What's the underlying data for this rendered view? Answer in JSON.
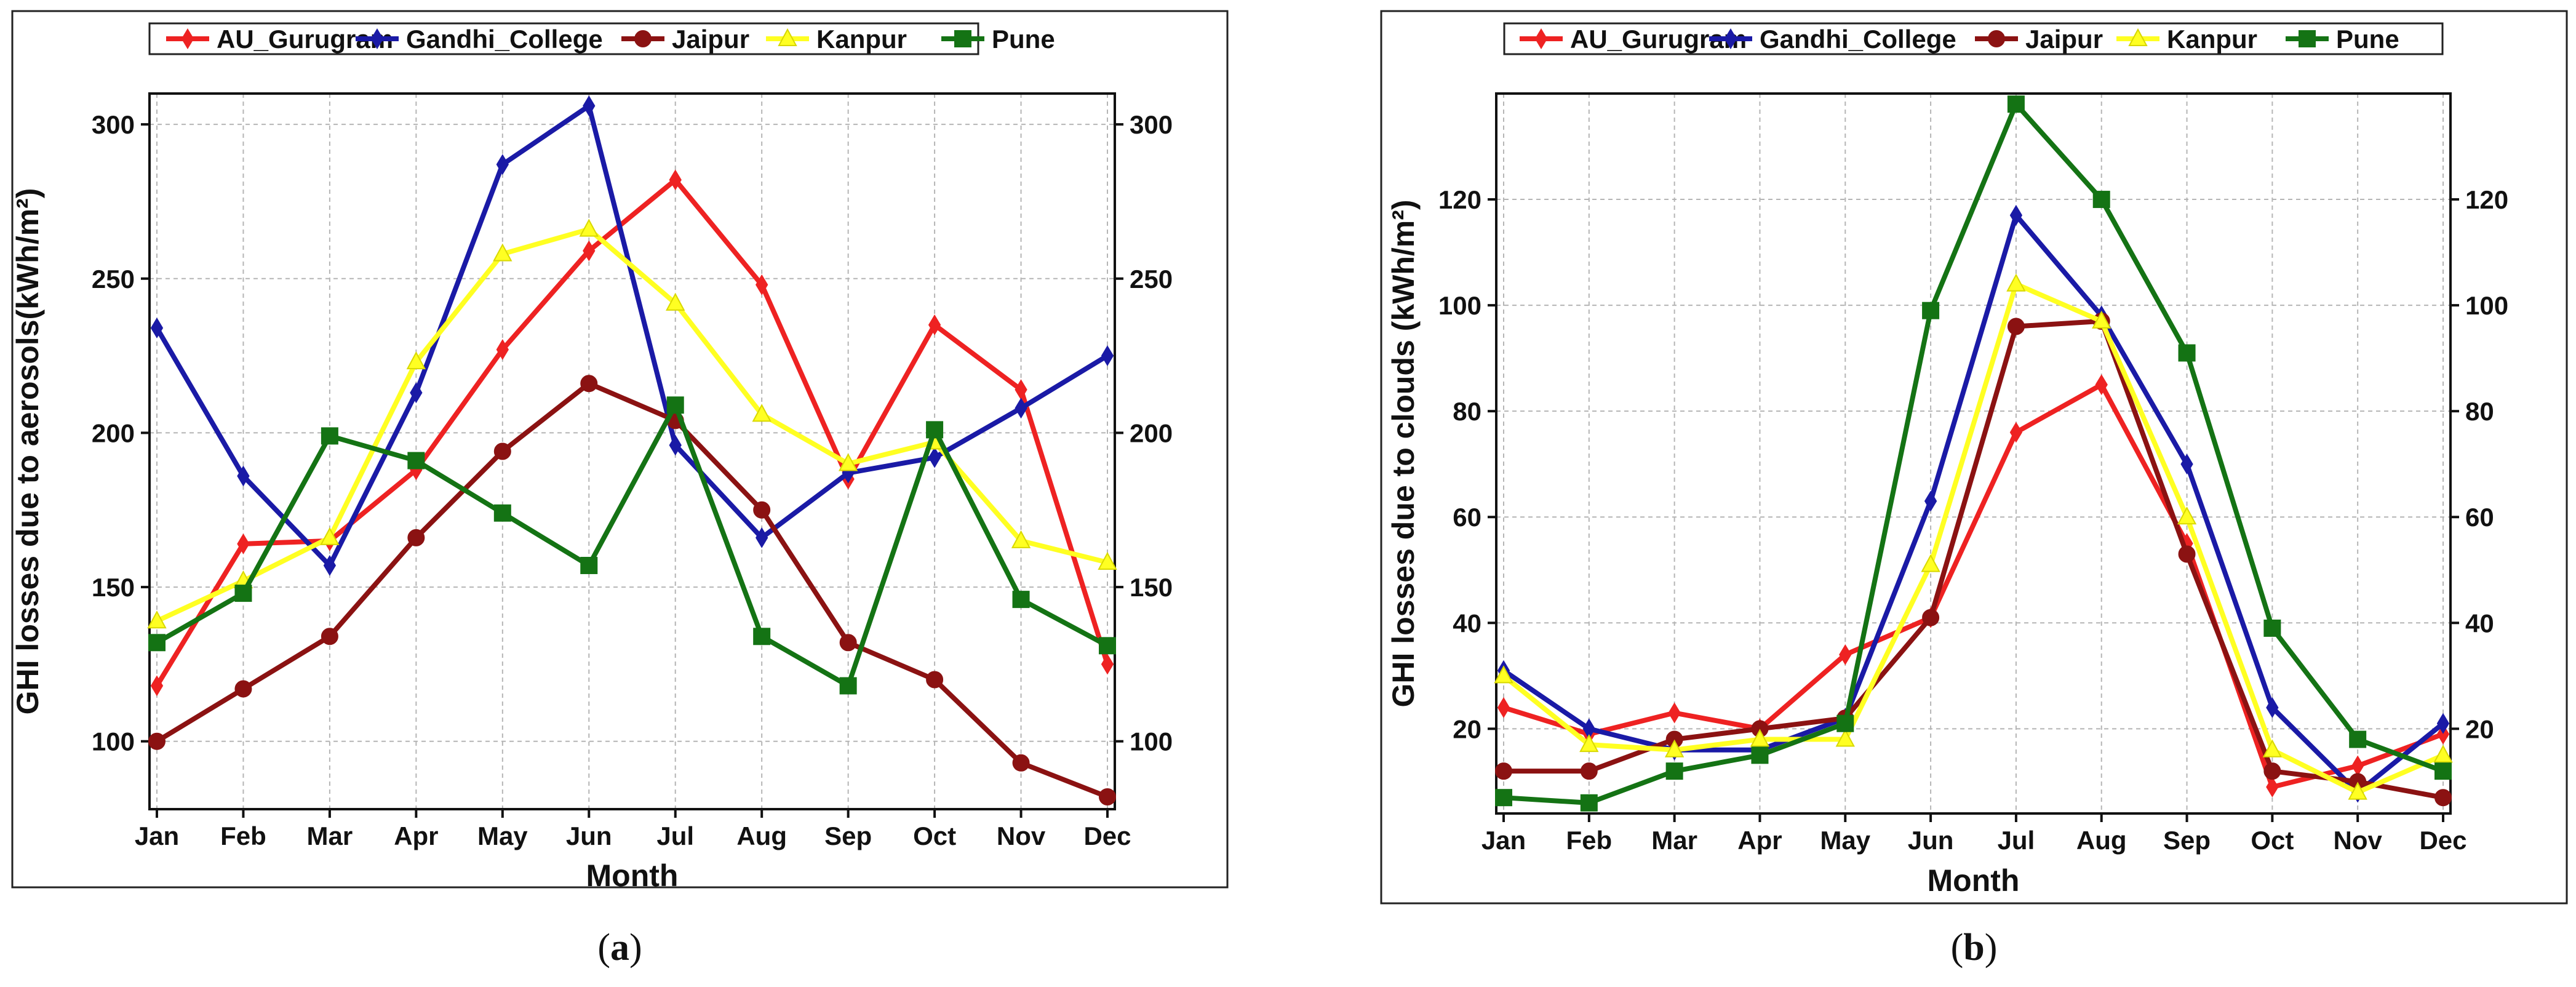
{
  "colors": {
    "AU_Gurugram": "#ee2222",
    "Gandhi_College": "#1a1aa6",
    "Jaipur": "#8b1212",
    "Kanpur": "#ffff22",
    "Pune": "#147314"
  },
  "chart_data": [
    {
      "type": "line",
      "panel_label": "a",
      "title": "",
      "xlabel": "Month",
      "ylabel": "GHI losses due to aerosols(kWh/m²)",
      "categories": [
        "Jan",
        "Feb",
        "Mar",
        "Apr",
        "May",
        "Jun",
        "Jul",
        "Aug",
        "Sep",
        "Oct",
        "Nov",
        "Dec"
      ],
      "ylim": [
        78,
        310
      ],
      "yticks": [
        100,
        150,
        200,
        250,
        300
      ],
      "grid": true,
      "legend": "top",
      "series": [
        {
          "name": "AU_Gurugram",
          "marker": "diamond",
          "values": [
            118,
            164,
            165,
            188,
            227,
            259,
            282,
            248,
            185,
            235,
            214,
            125
          ]
        },
        {
          "name": "Gandhi_College",
          "marker": "diamond",
          "values": [
            234,
            186,
            157,
            213,
            287,
            306,
            196,
            166,
            187,
            192,
            208,
            225
          ]
        },
        {
          "name": "Jaipur",
          "marker": "circle",
          "values": [
            100,
            117,
            134,
            166,
            194,
            216,
            204,
            175,
            132,
            120,
            93,
            82
          ]
        },
        {
          "name": "Kanpur",
          "marker": "triangle",
          "values": [
            139,
            152,
            166,
            223,
            258,
            266,
            242,
            206,
            190,
            197,
            165,
            158
          ]
        },
        {
          "name": "Pune",
          "marker": "square",
          "values": [
            132,
            148,
            199,
            191,
            174,
            157,
            209,
            134,
            118,
            201,
            146,
            131
          ]
        }
      ]
    },
    {
      "type": "line",
      "panel_label": "b",
      "title": "",
      "xlabel": "Month",
      "ylabel": "GHI losses due to clouds (kWh/m²)",
      "categories": [
        "Jan",
        "Feb",
        "Mar",
        "Apr",
        "May",
        "Jun",
        "Jul",
        "Aug",
        "Sep",
        "Oct",
        "Nov",
        "Dec"
      ],
      "ylim": [
        4,
        140
      ],
      "yticks": [
        20,
        40,
        60,
        80,
        100,
        120
      ],
      "grid": true,
      "legend": "top",
      "series": [
        {
          "name": "AU_Gurugram",
          "marker": "diamond",
          "values": [
            24,
            19,
            23,
            20,
            34,
            41,
            76,
            85,
            55,
            9,
            13,
            19
          ]
        },
        {
          "name": "Gandhi_College",
          "marker": "diamond",
          "values": [
            31,
            20,
            16,
            16,
            22,
            63,
            117,
            98,
            70,
            24,
            8,
            21
          ]
        },
        {
          "name": "Jaipur",
          "marker": "circle",
          "values": [
            12,
            12,
            18,
            20,
            22,
            41,
            96,
            97,
            53,
            12,
            10,
            7
          ]
        },
        {
          "name": "Kanpur",
          "marker": "triangle",
          "values": [
            30,
            17,
            16,
            18,
            18,
            51,
            104,
            97,
            60,
            16,
            8,
            15
          ]
        },
        {
          "name": "Pune",
          "marker": "square",
          "values": [
            7,
            6,
            12,
            15,
            21,
            99,
            138,
            120,
            91,
            39,
            18,
            12
          ]
        }
      ]
    }
  ]
}
